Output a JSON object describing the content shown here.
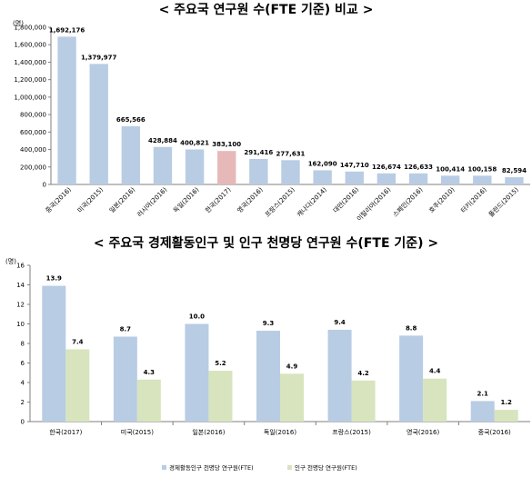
{
  "titles": {
    "top": "< 주요국 연구원 수(FTE 기준) 비교 >",
    "bottom": "< 주요국 경제활동인구 및 인구 천명당 연구원 수(FTE 기준) >"
  },
  "chart_data": [
    {
      "type": "bar",
      "title": "< 주요국 연구원 수(FTE 기준) 비교 >",
      "unit": "(명)",
      "categories": [
        "중국(2016)",
        "미국(2015)",
        "일본(2016)",
        "러시아(2016)",
        "독일(2016)",
        "한국(2017)",
        "영국(2016)",
        "프랑스(2015)",
        "캐나다(2014)",
        "대만(2016)",
        "이탈리아(2016)",
        "스페인(2016)",
        "호주(2010)",
        "터키(2016)",
        "폴란드(2015)"
      ],
      "series": [
        {
          "values": [
            1692176,
            1379977,
            665566,
            428884,
            400821,
            383100,
            291416,
            277631,
            162090,
            147710,
            126674,
            126633,
            100414,
            100158,
            82594
          ],
          "labels": [
            "1,692,176",
            "1,379,977",
            "665,566",
            "428,884",
            "400,821",
            "383,100",
            "291,416",
            "277,631",
            "162,090",
            "147,710",
            "126,674",
            "126,633",
            "100,414",
            "100,158",
            "82,594"
          ]
        }
      ],
      "highlight_index": 5,
      "ylim": [
        0,
        1800000
      ],
      "yticks": [
        0,
        200000,
        400000,
        600000,
        800000,
        1000000,
        1200000,
        1400000,
        1600000,
        1800000
      ],
      "yticklabels": [
        "0",
        "200,000",
        "400,000",
        "600,000",
        "800,000",
        "1,000,000",
        "1,200,000",
        "1,400,000",
        "1,600,000",
        "1,800,000"
      ],
      "colors": {
        "bar": "#b8cce4",
        "highlight": "#e6b9b8",
        "axis": "#7f7f7f"
      },
      "grid": false
    },
    {
      "type": "bar",
      "title": "< 주요국 경제활동인구 및 인구 천명당 연구원 수(FTE 기준) >",
      "unit": "(명)",
      "categories": [
        "한국(2017)",
        "미국(2015)",
        "일본(2016)",
        "독일(2016)",
        "프랑스(2015)",
        "영국(2016)",
        "중국(2016)"
      ],
      "series": [
        {
          "name": "경제활동인구 천명당 연구원(FTE)",
          "values": [
            13.9,
            8.7,
            10.0,
            9.3,
            9.4,
            8.8,
            2.1
          ],
          "labels": [
            "13.9",
            "8.7",
            "10.0",
            "9.3",
            "9.4",
            "8.8",
            "2.1"
          ],
          "color": "#b8cce4"
        },
        {
          "name": "인구 천명당 연구원(FTE)",
          "values": [
            7.4,
            4.3,
            5.2,
            4.9,
            4.2,
            4.4,
            1.2
          ],
          "labels": [
            "7.4",
            "4.3",
            "5.2",
            "4.9",
            "4.2",
            "4.4",
            "1.2"
          ],
          "color": "#d7e4bd"
        }
      ],
      "ylim": [
        0,
        16
      ],
      "yticks": [
        0,
        2,
        4,
        6,
        8,
        10,
        12,
        14,
        16
      ],
      "yticklabels": [
        "0",
        "2",
        "4",
        "6",
        "8",
        "10",
        "12",
        "14",
        "16"
      ],
      "legend": "bottom",
      "grid": false
    }
  ]
}
